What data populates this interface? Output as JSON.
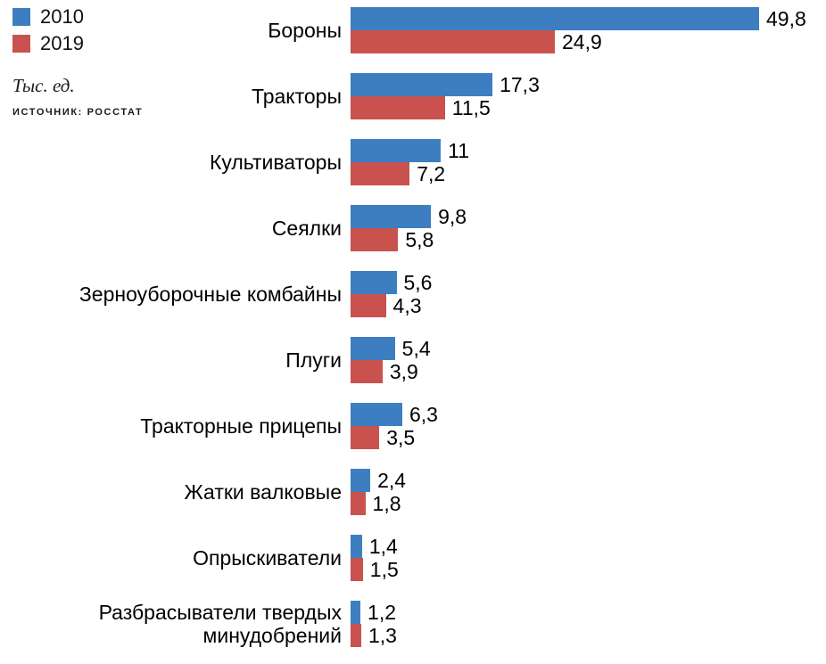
{
  "legend": {
    "items": [
      {
        "label": "2010",
        "color": "#3d7ec1"
      },
      {
        "label": "2019",
        "color": "#c9524e"
      }
    ]
  },
  "units_label": "Тыс. ед.",
  "source_label": "ИСТОЧНИК: РОССТАТ",
  "chart_data": {
    "type": "bar",
    "orientation": "horizontal",
    "title": "",
    "xlabel": "Тыс. ед.",
    "ylabel": "",
    "xlim": [
      0,
      49.8
    ],
    "grid": false,
    "legend_position": "top-left",
    "source": "Росстат",
    "categories": [
      "Бороны",
      "Тракторы",
      "Культиваторы",
      "Сеялки",
      "Зерноуборочные комбайны",
      "Плуги",
      "Тракторные прицепы",
      "Жатки валковые",
      "Опрыскиватели",
      "Разбрасыватели твердых минудобрений"
    ],
    "series": [
      {
        "name": "2010",
        "color": "#3d7ec1",
        "values": [
          49.8,
          17.3,
          11,
          9.8,
          5.6,
          5.4,
          6.3,
          2.4,
          1.4,
          1.2
        ]
      },
      {
        "name": "2019",
        "color": "#c9524e",
        "values": [
          24.9,
          11.5,
          7.2,
          5.8,
          4.3,
          3.9,
          3.5,
          1.8,
          1.5,
          1.3
        ]
      }
    ],
    "value_labels": [
      [
        "49,8",
        "17,3",
        "11",
        "9,8",
        "5,6",
        "5,4",
        "6,3",
        "2,4",
        "1,4",
        "1,2"
      ],
      [
        "24,9",
        "11,5",
        "7,2",
        "5,8",
        "4,3",
        "3,9",
        "3,5",
        "1,8",
        "1,5",
        "1,3"
      ]
    ]
  }
}
